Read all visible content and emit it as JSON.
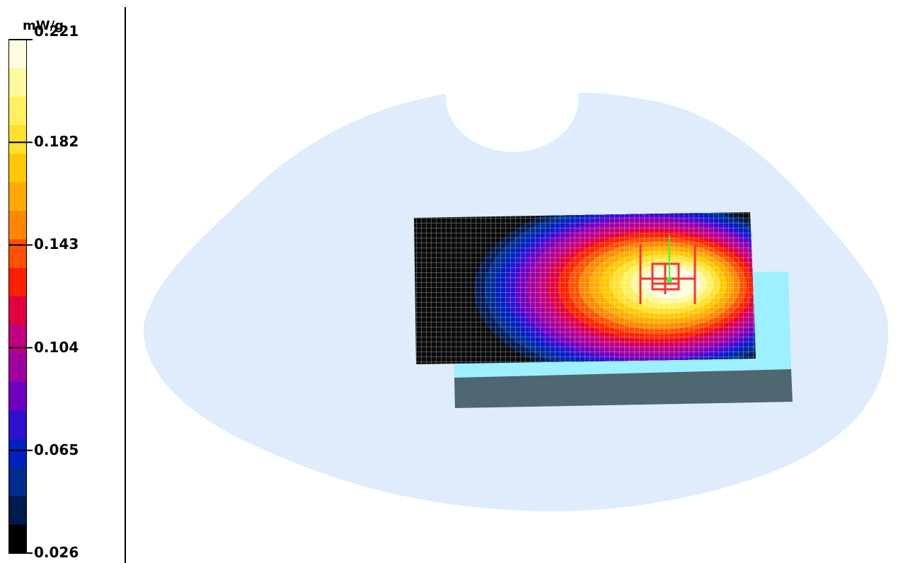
{
  "chart_data": {
    "type": "heatmap",
    "unit": "mW/g",
    "range": [
      0.026,
      0.221
    ],
    "tick_labels": [
      "0.221",
      "0.182",
      "0.143",
      "0.104",
      "0.065",
      "0.026"
    ],
    "colors": [
      "#fffde0",
      "#fff9a0",
      "#fff060",
      "#ffe030",
      "#ffc800",
      "#ffaa00",
      "#ff8800",
      "#ff5000",
      "#ff2000",
      "#e00040",
      "#c00080",
      "#a000a0",
      "#7000c0",
      "#3010d0",
      "#0020c0",
      "#002c90",
      "#001a50",
      "#000000"
    ],
    "peak_value": 0.221,
    "min_value": 0.026
  },
  "scene_colors": {
    "phantom": "#deecfc",
    "scan_background": "#0a0a0a",
    "grid_line": "#ffffff",
    "device_top": "#9cf0ff",
    "device_side": "#4e6771",
    "probe_red": "#ff3030",
    "probe_green": "#30ff30"
  }
}
